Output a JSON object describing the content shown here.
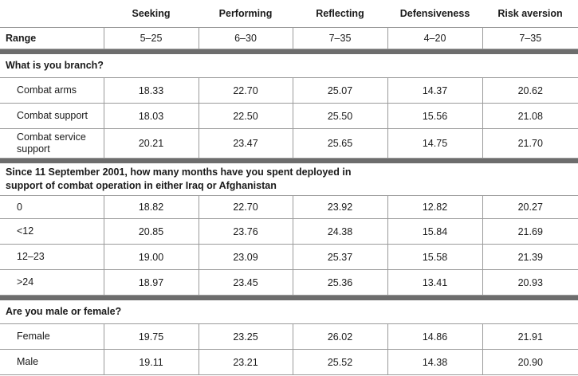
{
  "columns": [
    "Seeking",
    "Performing",
    "Reflecting",
    "Defensiveness",
    "Risk aversion"
  ],
  "range": {
    "label": "Range",
    "values": [
      "5–25",
      "6–30",
      "7–35",
      "4–20",
      "7–35"
    ]
  },
  "sections": [
    {
      "title": "What is you branch?",
      "rows": [
        {
          "label": "Combat arms",
          "values": [
            "18.33",
            "22.70",
            "25.07",
            "14.37",
            "20.62"
          ]
        },
        {
          "label": "Combat support",
          "values": [
            "18.03",
            "22.50",
            "25.50",
            "15.56",
            "21.08"
          ]
        },
        {
          "label": "Combat service support",
          "values": [
            "20.21",
            "23.47",
            "25.65",
            "14.75",
            "21.70"
          ]
        }
      ]
    },
    {
      "title": "Since 11 September 2001, how many months have you spent deployed in support of combat operation in either Iraq or Afghanistan",
      "rows": [
        {
          "label": "0",
          "values": [
            "18.82",
            "22.70",
            "23.92",
            "12.82",
            "20.27"
          ]
        },
        {
          "label": "<12",
          "values": [
            "20.85",
            "23.76",
            "24.38",
            "15.84",
            "21.69"
          ]
        },
        {
          "label": "12–23",
          "values": [
            "19.00",
            "23.09",
            "25.37",
            "15.58",
            "21.39"
          ]
        },
        {
          "label": ">24",
          "values": [
            "18.97",
            "23.45",
            "25.36",
            "13.41",
            "20.93"
          ]
        }
      ]
    },
    {
      "title": "Are you male or female?",
      "rows": [
        {
          "label": "Female",
          "values": [
            "19.75",
            "23.25",
            "26.02",
            "14.86",
            "21.91"
          ]
        },
        {
          "label": "Male",
          "values": [
            "19.11",
            "23.21",
            "25.52",
            "14.38",
            "20.90"
          ]
        }
      ]
    }
  ]
}
